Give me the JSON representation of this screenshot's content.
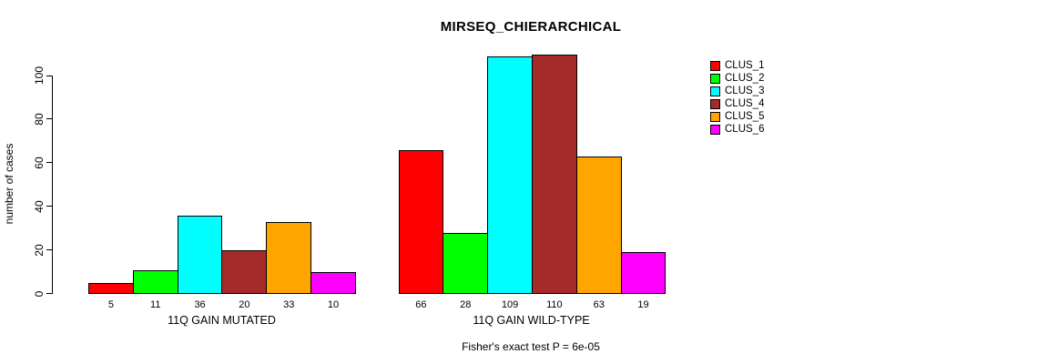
{
  "title": "MIRSEQ_CHIERARCHICAL",
  "ylabel": "number of cases",
  "footer": "Fisher's exact test P = 6e-05",
  "chart_data": {
    "type": "bar",
    "title": "MIRSEQ_CHIERARCHICAL",
    "ylabel": "number of cases",
    "xlabel": "",
    "annotation": "Fisher's exact test P = 6e-05",
    "legend_position": "right",
    "grid": false,
    "yticks": [
      0,
      20,
      40,
      60,
      80,
      100
    ],
    "ylim": [
      0,
      115
    ],
    "series_names": [
      "CLUS_1",
      "CLUS_2",
      "CLUS_3",
      "CLUS_4",
      "CLUS_5",
      "CLUS_6"
    ],
    "colors": [
      "#FF0000",
      "#00FF00",
      "#00FFFF",
      "#A52A2A",
      "#FFA500",
      "#FF00FF"
    ],
    "groups": [
      {
        "label": "11Q GAIN MUTATED",
        "values": [
          5,
          11,
          36,
          20,
          33,
          10
        ]
      },
      {
        "label": "11Q GAIN WILD-TYPE",
        "values": [
          66,
          28,
          109,
          110,
          63,
          19
        ]
      }
    ]
  }
}
